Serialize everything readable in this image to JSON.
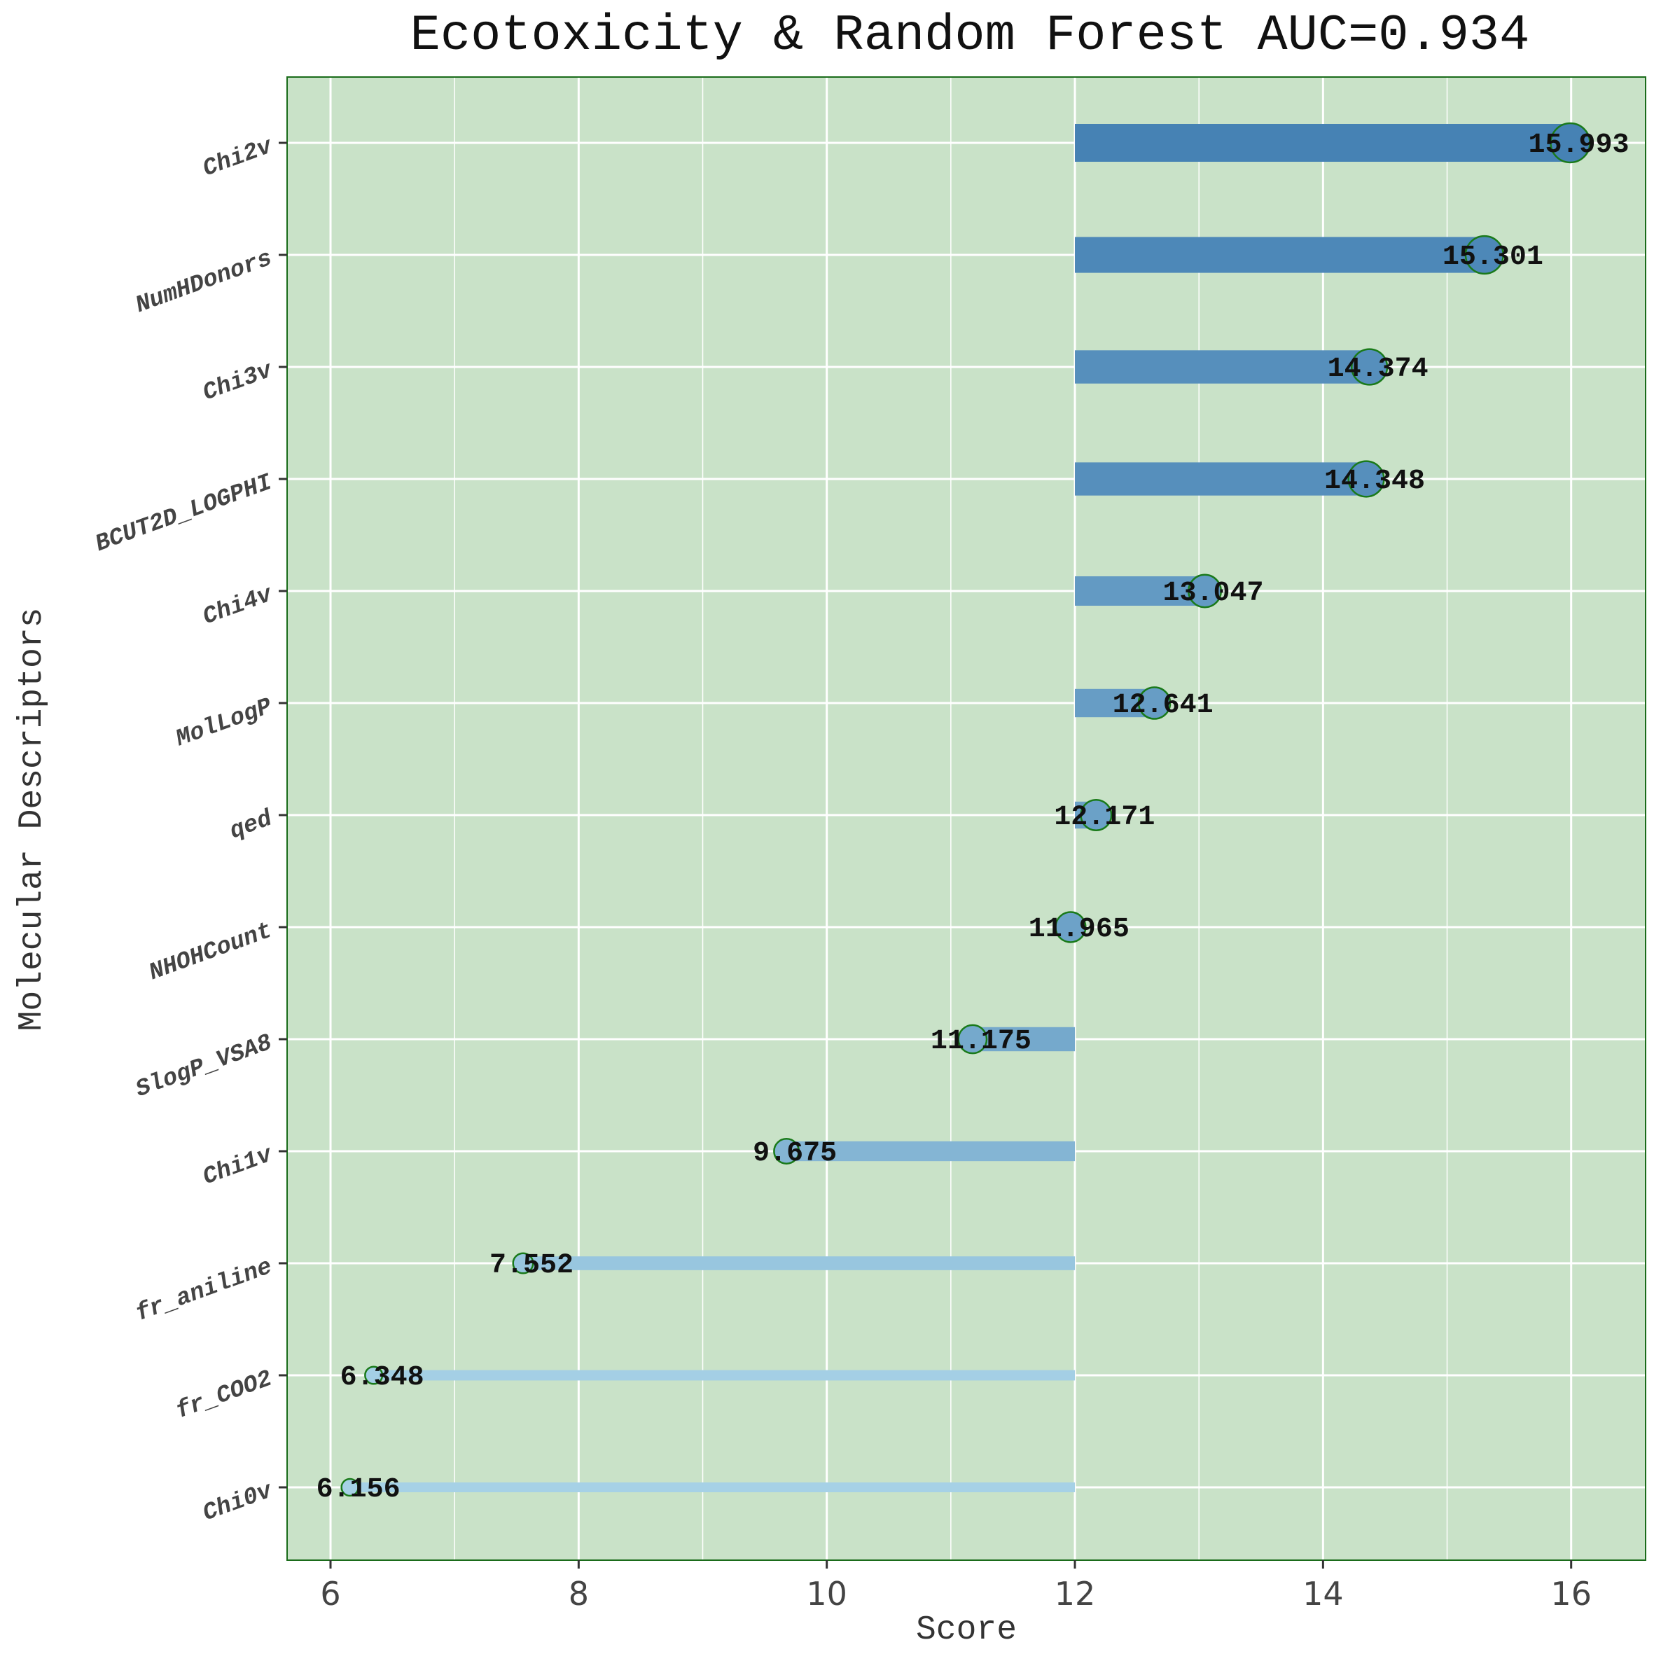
{
  "chart_data": {
    "type": "lollipop",
    "title": "Ecotoxicity & Random Forest AUC=0.934",
    "xlabel": "Score",
    "ylabel": "Molecular Descriptors",
    "xlim": [
      5.65,
      16.6
    ],
    "x_ticks": [
      6,
      8,
      10,
      12,
      14,
      16
    ],
    "baseline": 12,
    "grid": true,
    "categories": [
      "Chi2v",
      "NumHDonors",
      "Chi3v",
      "BCUT2D_LOGPHI",
      "Chi4v",
      "MolLogP",
      "qed",
      "NHOHCount",
      "SlogP_VSA8",
      "Chi1v",
      "fr_aniline",
      "fr_COO2",
      "Chi0v"
    ],
    "values": [
      15.993,
      15.301,
      14.374,
      14.348,
      13.047,
      12.641,
      12.171,
      11.965,
      11.175,
      9.675,
      7.552,
      6.348,
      6.156
    ],
    "labels": [
      "15.993",
      "15.301",
      "14.374",
      "14.348",
      "13.047",
      "12.641",
      "12.171",
      "11.965",
      "11.175",
      "9.675",
      "7.552",
      "6.348",
      "6.156"
    ],
    "colors": {
      "panel_background": "#c9e2c8",
      "panel_border": "#1a6b1a",
      "grid": "#ffffff",
      "bar_high": "#4682b4",
      "bar_low": "#a6d1e6",
      "marker_edge": "#1a7a1a"
    }
  }
}
